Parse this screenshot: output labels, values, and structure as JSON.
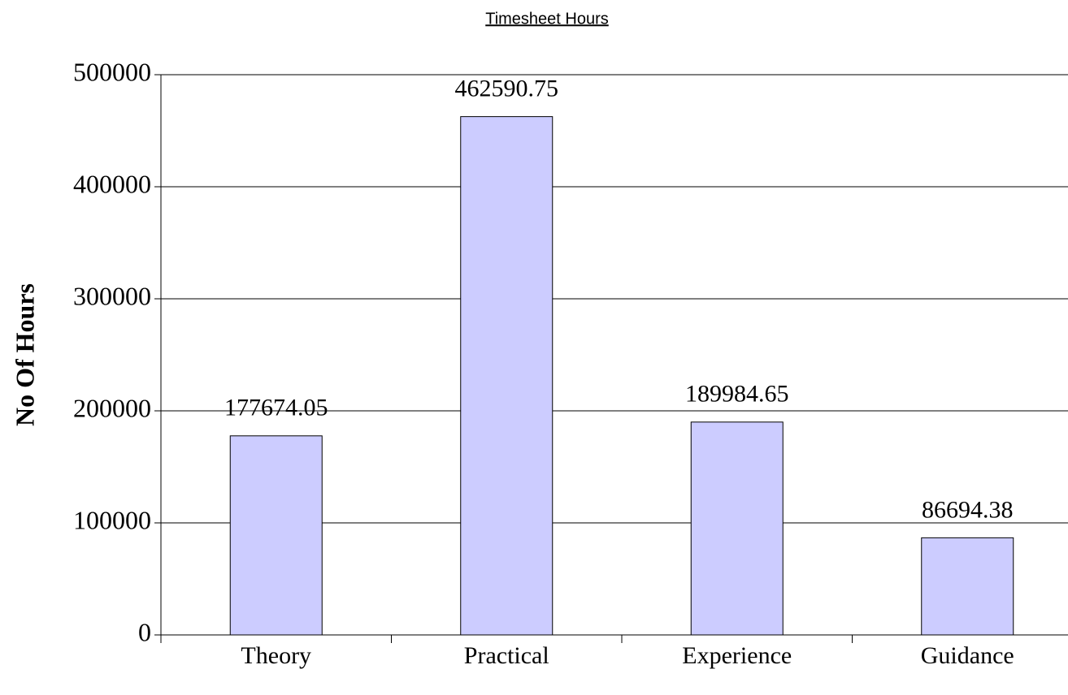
{
  "chart_data": {
    "type": "bar",
    "title": "Timesheet Hours",
    "y_label": "No Of Hours",
    "categories": [
      "Theory",
      "Practical",
      "Experience",
      "Guidance"
    ],
    "values": [
      177674.05,
      462590.75,
      189984.65,
      86694.38
    ],
    "color": "#ccccff",
    "ylim": [
      0,
      500000
    ],
    "yticks": [
      0,
      100000,
      200000,
      300000,
      400000,
      500000
    ],
    "grid": true
  }
}
